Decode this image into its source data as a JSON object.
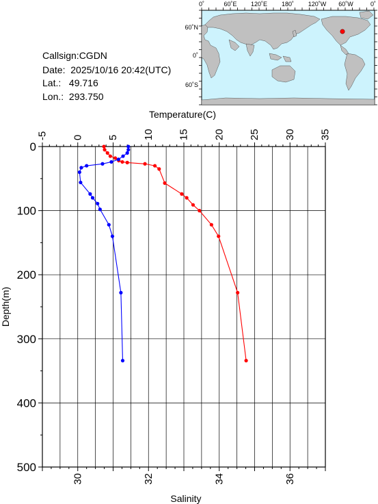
{
  "info": {
    "callsign": "Callsign:CGDN",
    "date": "Date:  2025/10/16 20:42(UTC)",
    "lat": "Lat.:   49.716",
    "lon": "Lon.:  293.750"
  },
  "map": {
    "lon_labels": [
      "0˚",
      "60˚E",
      "120˚E",
      "180˚",
      "120˚W",
      "60˚W",
      "0˚"
    ],
    "lat_labels": [
      "60˚N",
      "0˚",
      "60˚S"
    ],
    "ocean_color": "#cdf3fd",
    "land_color": "#c0c0c0",
    "station_color": "#ff0000"
  },
  "chart_data": {
    "type": "line",
    "y_axis": {
      "label": "Depth(m)",
      "range": [
        0,
        500
      ],
      "inverted": true,
      "ticks": [
        0,
        100,
        200,
        300,
        400,
        500
      ]
    },
    "top_axis": {
      "label": "Temperature(C)",
      "range": [
        -5,
        35
      ],
      "ticks": [
        -5,
        0,
        5,
        10,
        15,
        20,
        25,
        30,
        35
      ]
    },
    "bottom_axis": {
      "label": "Salinity",
      "range": [
        29,
        37
      ],
      "ticks": [
        30,
        32,
        34,
        36
      ]
    },
    "grid": true,
    "series": [
      {
        "color": "#ff0000",
        "axis": "top",
        "points": [
          [
            3.7,
            0
          ],
          [
            3.8,
            5
          ],
          [
            4.2,
            10
          ],
          [
            4.6,
            15
          ],
          [
            5.3,
            18
          ],
          [
            5.8,
            22
          ],
          [
            6.3,
            24
          ],
          [
            7.0,
            25
          ],
          [
            9.5,
            27
          ],
          [
            10.9,
            30
          ],
          [
            11.5,
            35
          ],
          [
            12.3,
            57
          ],
          [
            14.7,
            74
          ],
          [
            15.4,
            80
          ],
          [
            16.3,
            91
          ],
          [
            17.2,
            100
          ],
          [
            18.9,
            122
          ],
          [
            19.9,
            140
          ],
          [
            22.6,
            228
          ],
          [
            23.8,
            334
          ]
        ]
      },
      {
        "color": "#0000ff",
        "axis": "bottom",
        "points": [
          [
            31.43,
            0
          ],
          [
            31.43,
            5
          ],
          [
            31.4,
            10
          ],
          [
            31.28,
            15
          ],
          [
            31.15,
            20
          ],
          [
            30.95,
            24
          ],
          [
            30.7,
            27
          ],
          [
            30.25,
            30
          ],
          [
            30.1,
            33
          ],
          [
            30.05,
            40
          ],
          [
            30.08,
            56
          ],
          [
            30.35,
            74
          ],
          [
            30.42,
            80
          ],
          [
            30.56,
            89
          ],
          [
            30.63,
            98
          ],
          [
            30.88,
            122
          ],
          [
            30.98,
            140
          ],
          [
            31.22,
            228
          ],
          [
            31.27,
            334
          ]
        ]
      }
    ]
  }
}
